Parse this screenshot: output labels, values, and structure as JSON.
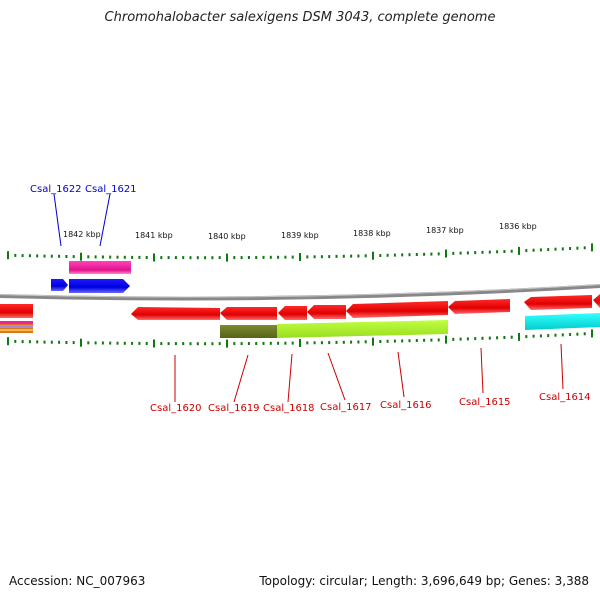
{
  "title": "Chromohalobacter salexigens DSM 3043, complete genome",
  "accession": "Accession: NC_007963",
  "summary": "Topology: circular; Length: 3,696,649 bp; Genes: 3,388",
  "scale_labels": [
    "1842 kbp",
    "1841 kbp",
    "1840 kbp",
    "1839 kbp",
    "1838 kbp",
    "1837 kbp",
    "1836 kbp"
  ],
  "genes_top": [
    {
      "label": "Csal_1622",
      "color": "#0000cc"
    },
    {
      "label": "Csal_1621",
      "color": "#0000cc"
    }
  ],
  "genes_bottom": [
    {
      "label": "Csal_1620",
      "color": "#cc0000"
    },
    {
      "label": "Csal_1619",
      "color": "#cc0000"
    },
    {
      "label": "Csal_1618",
      "color": "#cc0000"
    },
    {
      "label": "Csal_1617",
      "color": "#cc0000"
    },
    {
      "label": "Csal_1616",
      "color": "#cc0000"
    },
    {
      "label": "Csal_1615",
      "color": "#cc0000"
    },
    {
      "label": "Csal_1614",
      "color": "#cc0000"
    }
  ],
  "colors": {
    "forward_strand": "#0000ee",
    "reverse_strand": "#ee0000",
    "feature_magenta": "#ee2299",
    "feature_olive": "#667722",
    "feature_lime": "#aaee33",
    "feature_cyan": "#00eeee",
    "tick": "#117711",
    "backbone": "#888888"
  }
}
